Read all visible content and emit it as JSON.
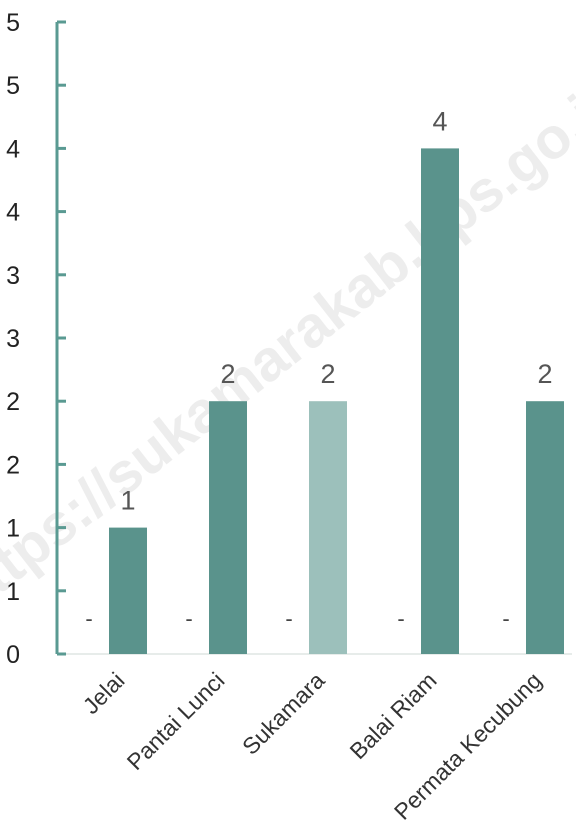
{
  "chart_data": {
    "type": "bar",
    "categories": [
      "Jelai",
      "Pantai Lunci",
      "Sukamara",
      "Balai Riam",
      "Permata Kecubung"
    ],
    "series": [
      {
        "values": [
          0,
          0,
          0,
          0,
          0
        ],
        "labels": [
          "-",
          "-",
          "-",
          "-",
          "-"
        ],
        "color": "#5a938c"
      },
      {
        "values": [
          1,
          2,
          2,
          4,
          2
        ],
        "labels": [
          "1",
          "2",
          "2",
          "4",
          "2"
        ],
        "color": "#5a938c"
      }
    ],
    "highlight": {
      "category": "Sukamara",
      "color": "#9cc0bb"
    },
    "yticks": [
      "0",
      "1",
      "1",
      "2",
      "2",
      "3",
      "3",
      "4",
      "4",
      "5",
      "5"
    ],
    "ylim": [
      0,
      5
    ],
    "grid": false,
    "axis_color": "#5a9a92"
  },
  "watermark": "https://sukamarakab.bps.go.id"
}
